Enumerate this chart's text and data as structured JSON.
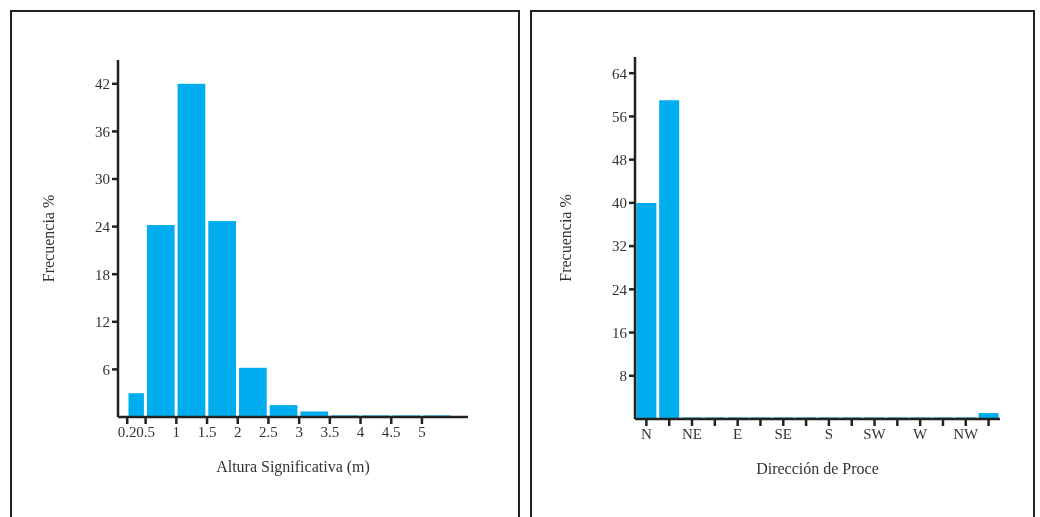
{
  "chart_data": [
    {
      "type": "histogram",
      "xlabel": "Altura Significativa (m)",
      "ylabel": "Frecuencia %",
      "color": "#00aeef",
      "bins": [
        0.2,
        0.5,
        1,
        1.5,
        2,
        2.5,
        3,
        3.5,
        4,
        4.5,
        5,
        5.5
      ],
      "values": [
        3.0,
        24.2,
        42,
        24.7,
        6.2,
        1.5,
        0.7,
        0.2,
        0.2,
        0.2,
        0.2
      ],
      "xlim": [
        0.05,
        5.75
      ],
      "xticks": [
        0.2,
        0.5,
        1,
        1.5,
        2,
        2.5,
        3,
        3.5,
        4,
        4.5,
        5
      ],
      "ylim": [
        0,
        45
      ],
      "yticks": [
        6,
        12,
        18,
        24,
        30,
        36,
        42
      ],
      "grid": false
    },
    {
      "type": "bar",
      "xlabel": "Dirección de Proce",
      "ylabel": "Frecuencia %",
      "color": "#00aeef",
      "categories": [
        "N",
        null,
        "NE",
        null,
        "E",
        null,
        "SE",
        null,
        "S",
        null,
        "SW",
        null,
        "W",
        null,
        "NW",
        null
      ],
      "values": [
        40,
        59,
        0.3,
        0.3,
        0.3,
        0.3,
        0.3,
        0.3,
        0.3,
        0.3,
        0.3,
        0.3,
        0.3,
        0.3,
        0.3,
        1.1
      ],
      "ylim": [
        0,
        67
      ],
      "yticks": [
        8,
        16,
        24,
        32,
        40,
        48,
        56,
        64
      ],
      "grid": false
    }
  ]
}
